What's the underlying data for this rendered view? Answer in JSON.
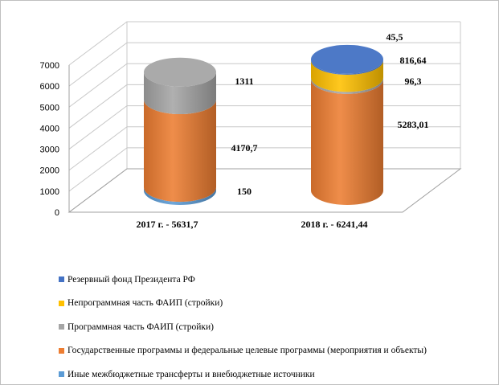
{
  "chart_data": {
    "type": "bar",
    "style": "3d-stacked-cylinder",
    "categories": [
      "2017 г. - 5631,7",
      "2018 г. - 6241,44"
    ],
    "ylim": [
      0,
      7000
    ],
    "yticks": [
      0,
      1000,
      2000,
      3000,
      4000,
      5000,
      6000,
      7000
    ],
    "grid": true,
    "legend_position": "bottom",
    "series": [
      {
        "name": "Иные межбюджетные  трансферты и внебюджетные  источники",
        "color": "#5b9bd5",
        "values": [
          150,
          0
        ],
        "labels": [
          "150",
          ""
        ]
      },
      {
        "name": "Государственные программы и федеральные целевые программы (мероприятия и объекты)",
        "color": "#ed7d31",
        "values": [
          4170.7,
          5283.01
        ],
        "labels": [
          "4170,7",
          "5283,01"
        ]
      },
      {
        "name": "Программная часть ФАИП (стройки)",
        "color": "#a5a5a5",
        "values": [
          1311,
          96.3
        ],
        "labels": [
          "1311",
          "96,3"
        ]
      },
      {
        "name": "Непрограммная часть ФАИП (стройки)",
        "color": "#ffc000",
        "values": [
          0,
          816.64
        ],
        "labels": [
          "",
          "816,64"
        ]
      },
      {
        "name": "Резервный фонд Президента РФ",
        "color": "#4472c4",
        "values": [
          0,
          45.5
        ],
        "labels": [
          "",
          "45,5"
        ]
      }
    ]
  },
  "legend_order": [
    4,
    3,
    2,
    1,
    0
  ]
}
